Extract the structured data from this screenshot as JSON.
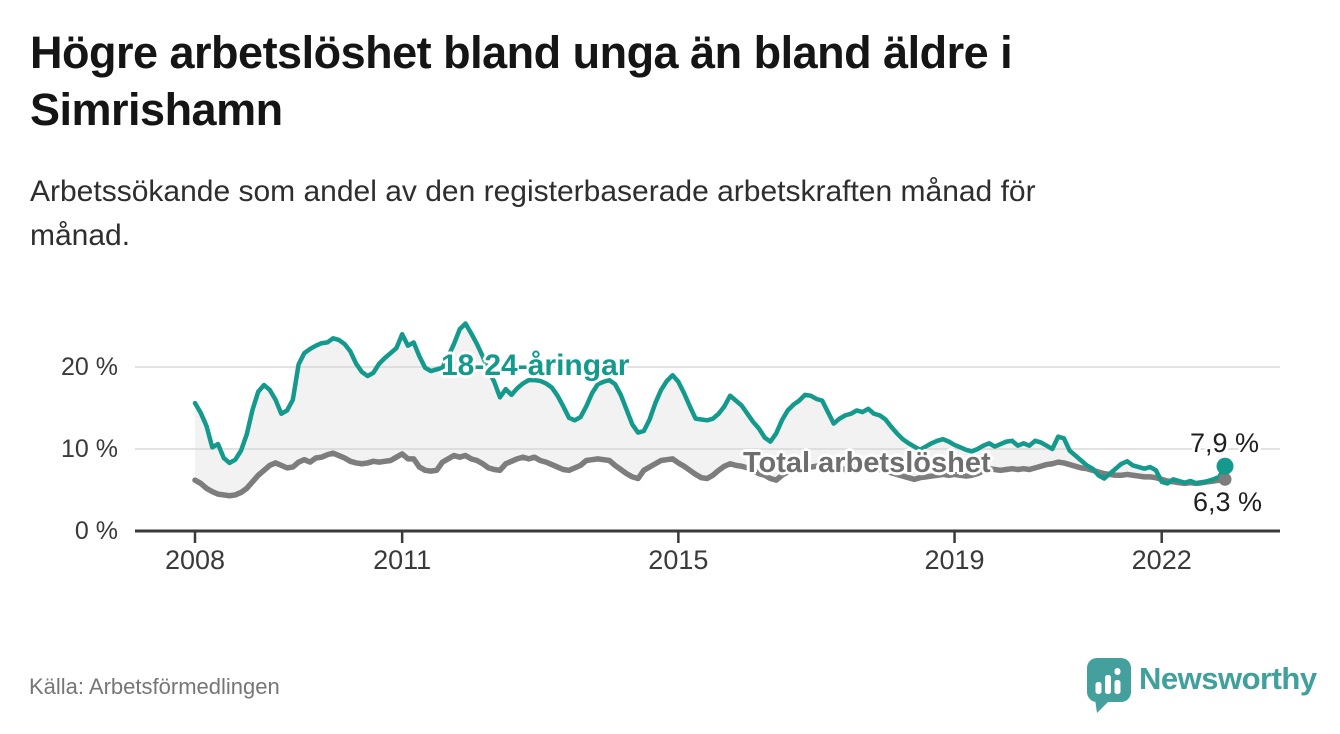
{
  "title_lines": [
    "Högre arbetslöshet bland unga än bland äldre i",
    "Simrishamn"
  ],
  "subtitle_lines": [
    "Arbetssökande som andel av den registerbaserade arbetskraften månad för",
    "månad."
  ],
  "source_note": "Källa: Arbetsförmedlingen",
  "logo": {
    "text": "Newsworthy",
    "icon": "bar-chart-speech-bubble-icon"
  },
  "colors": {
    "young_line": "#149a8c",
    "total_line": "#7d7d7d",
    "band_fill": "#f2f2f2",
    "grid": "#d8d8d8",
    "axis": "#3a3a3a",
    "end_label_text": "#1f1f1f",
    "logo_teal": "#3fa09c"
  },
  "chart_data": {
    "type": "line",
    "title": "Högre arbetslöshet bland unga än bland äldre i Simrishamn",
    "subtitle": "Arbetssökande som andel av den registerbaserade arbetskraften månad för månad.",
    "x_unit": "month",
    "x_start": "2008-01",
    "x_end": "2022-12",
    "ylim": [
      0,
      27
    ],
    "grid": "horizontal",
    "legend_position": "inline-labels",
    "y_ticks": [
      {
        "label": "20 %",
        "value": 20
      },
      {
        "label": "10 %",
        "value": 10
      },
      {
        "label": "0 %",
        "value": 0
      }
    ],
    "x_ticks": [
      {
        "label": "2008",
        "month_index": 0
      },
      {
        "label": "2011",
        "month_index": 36
      },
      {
        "label": "2015",
        "month_index": 84
      },
      {
        "label": "2019",
        "month_index": 132
      },
      {
        "label": "2022",
        "month_index": 168
      }
    ],
    "series": [
      {
        "name": "18-24-åringar",
        "color": "#149a8c",
        "end_label": "7,9 %",
        "end_value": 7.9,
        "values": [
          15.6,
          14.4,
          12.8,
          10.2,
          10.6,
          8.9,
          8.3,
          8.7,
          9.8,
          11.8,
          14.8,
          17.0,
          17.8,
          17.2,
          16.0,
          14.3,
          14.7,
          16.0,
          20.3,
          21.7,
          22.2,
          22.6,
          22.9,
          23.0,
          23.5,
          23.3,
          22.8,
          21.9,
          20.4,
          19.4,
          18.9,
          19.3,
          20.4,
          21.1,
          21.7,
          22.3,
          24.0,
          22.6,
          23.0,
          21.3,
          19.9,
          19.5,
          19.7,
          19.9,
          21.3,
          22.8,
          24.6,
          25.3,
          24.1,
          22.8,
          21.3,
          19.6,
          18.2,
          16.3,
          17.3,
          16.6,
          17.4,
          18.0,
          18.4,
          18.4,
          18.3,
          18.0,
          17.5,
          16.5,
          15.2,
          13.8,
          13.5,
          13.9,
          15.2,
          16.8,
          17.9,
          18.2,
          18.4,
          17.9,
          16.6,
          14.8,
          13.0,
          12.0,
          12.2,
          13.6,
          15.6,
          17.2,
          18.3,
          19.0,
          18.2,
          16.8,
          15.2,
          13.7,
          13.6,
          13.5,
          13.7,
          14.3,
          15.2,
          16.5,
          15.9,
          15.3,
          14.3,
          13.3,
          12.5,
          11.4,
          10.9,
          11.9,
          13.5,
          14.7,
          15.4,
          15.9,
          16.6,
          16.5,
          16.1,
          15.9,
          14.5,
          13.1,
          13.7,
          14.1,
          14.3,
          14.7,
          14.5,
          14.9,
          14.3,
          14.1,
          13.6,
          12.7,
          11.9,
          11.2,
          10.7,
          10.3,
          9.9,
          10.3,
          10.7,
          11.0,
          11.2,
          10.9,
          10.5,
          10.2,
          9.9,
          9.7,
          10.0,
          10.4,
          10.7,
          10.3,
          10.6,
          10.9,
          11.0,
          10.4,
          10.7,
          10.4,
          11.0,
          10.8,
          10.4,
          10.0,
          11.5,
          11.3,
          9.8,
          9.2,
          8.6,
          8.0,
          7.6,
          6.8,
          6.4,
          7.0,
          7.6,
          8.2,
          8.5,
          8.0,
          7.8,
          7.6,
          7.8,
          7.4,
          6.0,
          5.8,
          6.3,
          6.1,
          5.9,
          6.1,
          5.8,
          5.9,
          6.1,
          6.3,
          6.6,
          7.9
        ]
      },
      {
        "name": "Total arbetslöshet",
        "color": "#7d7d7d",
        "end_label": "6,3 %",
        "end_value": 6.3,
        "values": [
          6.2,
          5.8,
          5.2,
          4.8,
          4.5,
          4.4,
          4.3,
          4.4,
          4.7,
          5.2,
          6.0,
          6.8,
          7.4,
          8.0,
          8.3,
          8.0,
          7.7,
          7.8,
          8.4,
          8.7,
          8.4,
          8.9,
          9.0,
          9.3,
          9.5,
          9.2,
          8.9,
          8.5,
          8.3,
          8.2,
          8.3,
          8.5,
          8.4,
          8.5,
          8.6,
          9.0,
          9.4,
          8.8,
          8.8,
          7.8,
          7.4,
          7.3,
          7.4,
          8.4,
          8.8,
          9.2,
          9.0,
          9.2,
          8.8,
          8.6,
          8.2,
          7.7,
          7.5,
          7.4,
          8.2,
          8.5,
          8.8,
          9.0,
          8.8,
          9.0,
          8.6,
          8.4,
          8.1,
          7.8,
          7.5,
          7.4,
          7.7,
          8.0,
          8.6,
          8.7,
          8.8,
          8.7,
          8.6,
          8.0,
          7.5,
          7.0,
          6.6,
          6.4,
          7.4,
          7.8,
          8.2,
          8.6,
          8.7,
          8.8,
          8.3,
          7.9,
          7.4,
          6.9,
          6.5,
          6.4,
          6.8,
          7.4,
          7.9,
          8.2,
          8.0,
          7.9,
          7.7,
          7.4,
          7.0,
          6.8,
          6.4,
          6.2,
          6.8,
          7.2,
          7.4,
          7.6,
          7.7,
          7.8,
          7.9,
          8.1,
          8.3,
          8.0,
          7.7,
          7.5,
          7.7,
          7.9,
          8.0,
          7.9,
          7.7,
          7.5,
          7.3,
          7.1,
          6.9,
          6.7,
          6.5,
          6.3,
          6.5,
          6.6,
          6.7,
          6.8,
          6.9,
          6.8,
          6.9,
          6.8,
          6.7,
          6.8,
          7.0,
          7.3,
          7.6,
          7.5,
          7.4,
          7.5,
          7.6,
          7.5,
          7.6,
          7.5,
          7.7,
          7.9,
          8.1,
          8.2,
          8.4,
          8.3,
          8.1,
          7.9,
          7.7,
          7.6,
          7.4,
          7.2,
          7.0,
          6.9,
          6.8,
          6.8,
          6.9,
          6.8,
          6.7,
          6.6,
          6.6,
          6.5,
          6.3,
          6.1,
          6.0,
          5.9,
          5.8,
          5.9,
          5.8,
          5.9,
          6.0,
          6.1,
          6.2,
          6.3
        ]
      }
    ]
  }
}
